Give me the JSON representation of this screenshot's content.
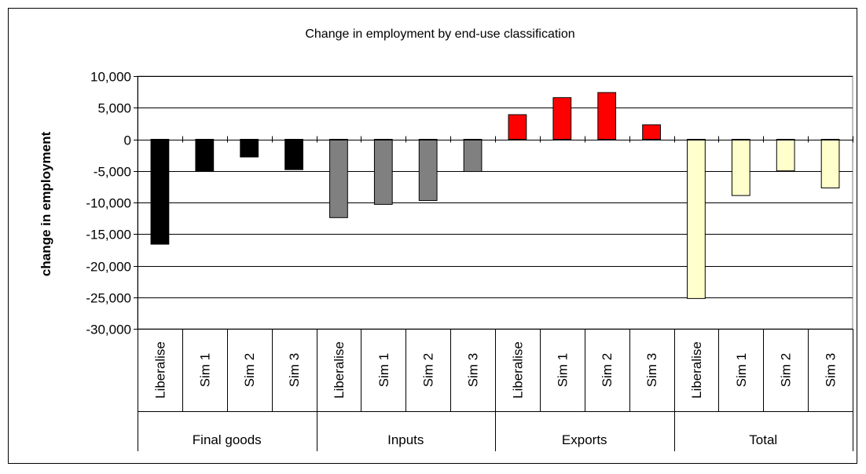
{
  "chart_data": {
    "type": "bar",
    "title": "Change in employment by end-use classification",
    "xlabel": "",
    "ylabel": "change in employment",
    "ylim": [
      -30000,
      10000
    ],
    "yticks": [
      10000,
      5000,
      0,
      -5000,
      -10000,
      -15000,
      -20000,
      -25000,
      -30000
    ],
    "ytick_labels": [
      "10,000",
      "5,000",
      "0",
      "-5,000",
      "-10,000",
      "-15,000",
      "-20,000",
      "-25,000",
      "-30,000"
    ],
    "grid": true,
    "legend": "none",
    "groups": [
      {
        "name": "Final goods",
        "color": "#000000",
        "categories": [
          "Liberalise",
          "Sim 1",
          "Sim 2",
          "Sim 3"
        ],
        "values": [
          -16600,
          -5100,
          -2800,
          -4800
        ]
      },
      {
        "name": "Inputs",
        "color": "#808080",
        "categories": [
          "Liberalise",
          "Sim 1",
          "Sim 2",
          "Sim 3"
        ],
        "values": [
          -12400,
          -10300,
          -9700,
          -5100
        ]
      },
      {
        "name": "Exports",
        "color": "#ff0000",
        "categories": [
          "Liberalise",
          "Sim 1",
          "Sim 2",
          "Sim 3"
        ],
        "values": [
          3900,
          6600,
          7400,
          2300
        ]
      },
      {
        "name": "Total",
        "color": "#ffffcc",
        "categories": [
          "Liberalise",
          "Sim 1",
          "Sim 2",
          "Sim 3"
        ],
        "values": [
          -25200,
          -8900,
          -5000,
          -7700
        ]
      }
    ]
  }
}
